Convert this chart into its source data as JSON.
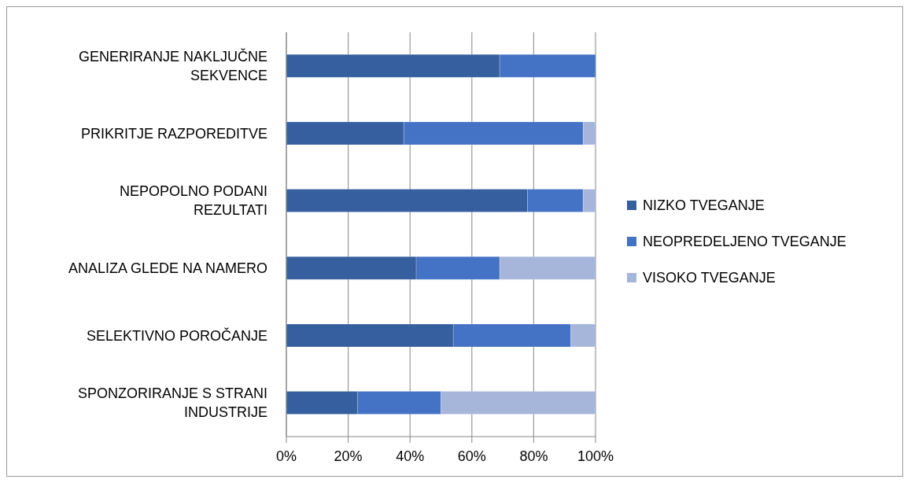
{
  "chart_data": {
    "type": "bar",
    "orientation": "horizontal",
    "stacked": true,
    "categories": [
      "GENERIRANJE NAKLJUČNE SEKVENCE",
      "PRIKRITJE RAZPOREDITVE",
      "NEPOPOLNO PODANI REZULTATI",
      "ANALIZA GLEDE NA NAMERO",
      "SELEKTIVNO POROČANJE",
      "SPONZORIRANJE S STRANI INDUSTRIJE"
    ],
    "series": [
      {
        "name": "NIZKO TVEGANJE",
        "color": "#365f9f",
        "values": [
          69,
          38,
          78,
          42,
          54,
          23
        ]
      },
      {
        "name": "NEOPREDELJENO TVEGANJE",
        "color": "#4472c4",
        "values": [
          31,
          58,
          18,
          27,
          38,
          27
        ]
      },
      {
        "name": "VISOKO TVEGANJE",
        "color": "#a6b5da",
        "values": [
          0,
          4,
          4,
          31,
          8,
          50
        ]
      }
    ],
    "xlim": [
      0,
      100
    ],
    "xticks": [
      {
        "value": 0,
        "label": "0%"
      },
      {
        "value": 20,
        "label": "20%"
      },
      {
        "value": 40,
        "label": "40%"
      },
      {
        "value": 60,
        "label": "60%"
      },
      {
        "value": 80,
        "label": "80%"
      },
      {
        "value": 100,
        "label": "100%"
      }
    ],
    "grid": "x",
    "legend": "right"
  }
}
